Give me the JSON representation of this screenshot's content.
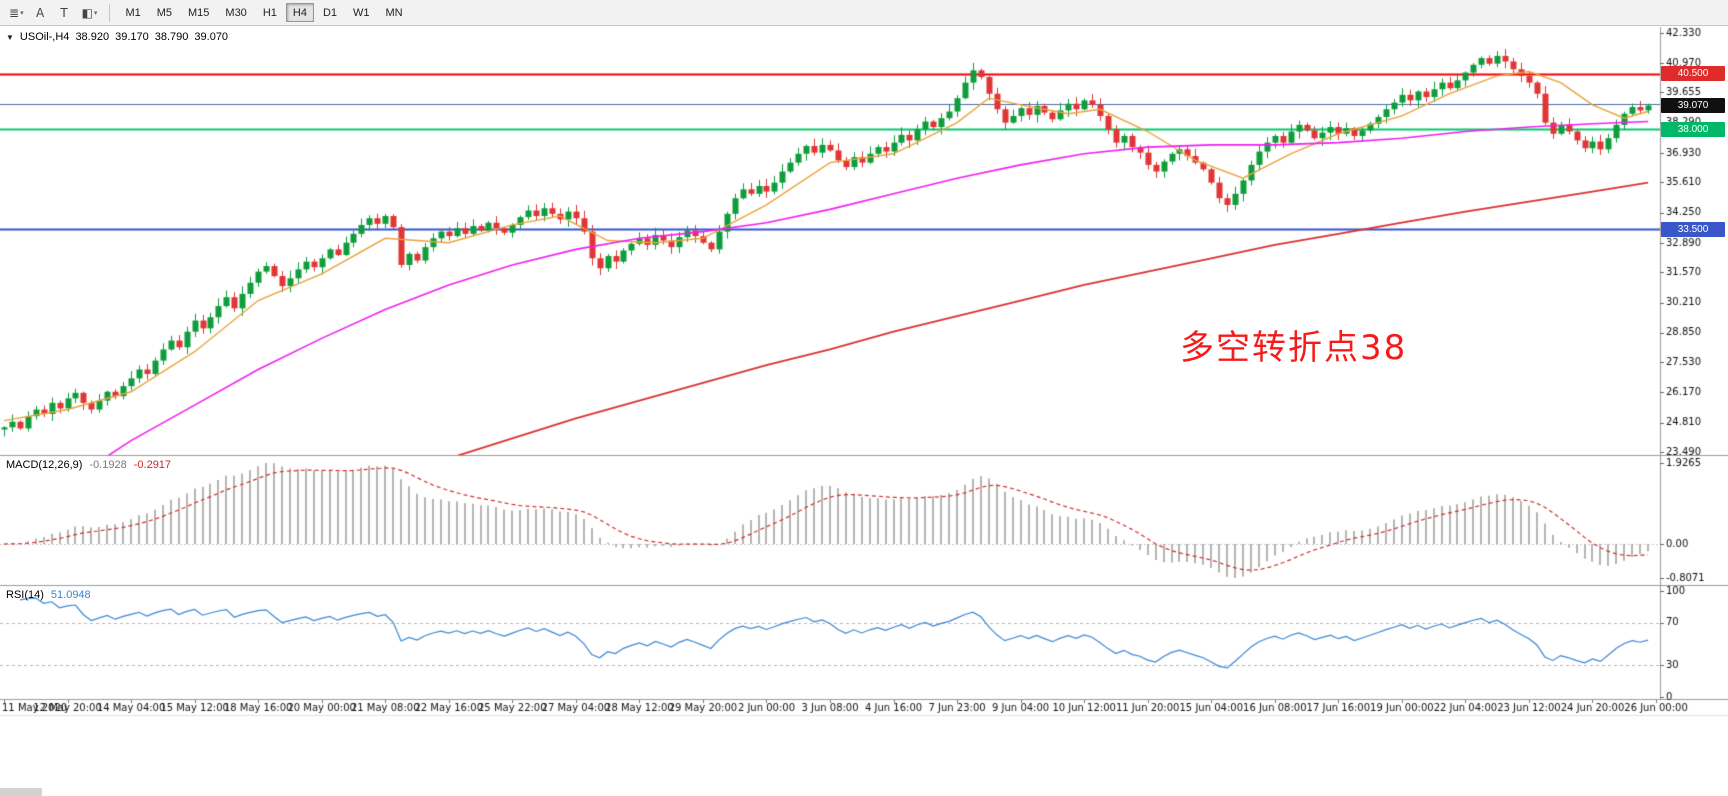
{
  "toolbar": {
    "tools": [
      {
        "glyph": "≣",
        "caret": "▾"
      },
      {
        "glyph": "A",
        "caret": ""
      },
      {
        "glyph": "T",
        "caret": ""
      },
      {
        "glyph": "◧",
        "caret": "▾"
      }
    ],
    "timeframes": [
      {
        "label": "M1",
        "active": false
      },
      {
        "label": "M5",
        "active": false
      },
      {
        "label": "M15",
        "active": false
      },
      {
        "label": "M30",
        "active": false
      },
      {
        "label": "H1",
        "active": false
      },
      {
        "label": "H4",
        "active": true
      },
      {
        "label": "D1",
        "active": false
      },
      {
        "label": "W1",
        "active": false
      },
      {
        "label": "MN",
        "active": false
      }
    ]
  },
  "chart": {
    "dropdown_icon": "▼",
    "symbol": "USOil-,H4",
    "open": "38.920",
    "high": "39.170",
    "low": "38.790",
    "close": "39.070",
    "macd_name": "MACD(12,26,9)",
    "macd_main": "-0.1928",
    "macd_signal": "-0.2917",
    "rsi_name": "RSI(14)",
    "rsi_value": "51.0948",
    "annotation": "多空转折点38"
  },
  "chart_data": {
    "type": "candlestick",
    "symbol": "USOil-",
    "timeframe": "H4",
    "price_axis": {
      "min": 23.49,
      "max": 42.33,
      "labels": [
        "42.330",
        "40.970",
        "39.655",
        "38.290",
        "36.930",
        "35.610",
        "34.250",
        "32.890",
        "31.570",
        "30.210",
        "28.850",
        "27.530",
        "26.170",
        "24.810",
        "23.490"
      ]
    },
    "first_open": 24.5,
    "closes": [
      24.6,
      24.85,
      24.55,
      25.1,
      25.4,
      25.2,
      25.7,
      25.45,
      25.9,
      26.15,
      25.7,
      25.4,
      25.8,
      26.2,
      26.0,
      26.45,
      26.8,
      27.2,
      27.0,
      27.6,
      28.1,
      28.5,
      28.2,
      28.9,
      29.4,
      29.05,
      29.55,
      30.05,
      30.45,
      29.95,
      30.6,
      31.1,
      31.6,
      31.85,
      31.4,
      30.95,
      31.3,
      31.7,
      32.05,
      31.8,
      32.2,
      32.6,
      32.35,
      32.9,
      33.3,
      33.7,
      34.0,
      33.75,
      34.1,
      33.6,
      31.9,
      32.4,
      32.1,
      32.7,
      33.1,
      33.4,
      33.2,
      33.55,
      33.3,
      33.65,
      33.45,
      33.8,
      33.55,
      33.35,
      33.7,
      34.05,
      34.35,
      34.1,
      34.45,
      34.2,
      33.95,
      34.3,
      34.0,
      33.4,
      32.2,
      31.75,
      32.3,
      32.05,
      32.55,
      32.85,
      33.1,
      32.8,
      33.25,
      33.0,
      32.7,
      33.15,
      33.45,
      33.2,
      32.9,
      32.6,
      33.4,
      34.2,
      34.9,
      35.3,
      35.1,
      35.45,
      35.2,
      35.6,
      36.1,
      36.5,
      36.9,
      37.25,
      36.95,
      37.3,
      37.05,
      36.6,
      36.3,
      36.75,
      36.5,
      36.9,
      37.2,
      37.0,
      37.4,
      37.75,
      37.5,
      38.0,
      38.35,
      38.1,
      38.5,
      38.8,
      39.4,
      40.1,
      40.65,
      40.35,
      39.6,
      38.9,
      38.3,
      38.6,
      38.95,
      38.65,
      39.05,
      38.75,
      38.45,
      38.85,
      39.15,
      38.9,
      39.3,
      39.1,
      38.6,
      38.0,
      37.4,
      37.7,
      37.2,
      36.95,
      36.4,
      36.1,
      36.55,
      36.9,
      37.1,
      36.8,
      36.5,
      36.2,
      35.6,
      34.9,
      34.6,
      35.1,
      35.7,
      36.4,
      37.0,
      37.4,
      37.7,
      37.4,
      37.9,
      38.2,
      37.95,
      37.6,
      37.85,
      38.1,
      37.8,
      38.05,
      37.7,
      37.95,
      38.25,
      38.55,
      38.9,
      39.2,
      39.55,
      39.3,
      39.7,
      39.45,
      39.8,
      40.1,
      39.85,
      40.2,
      40.55,
      40.9,
      41.2,
      40.95,
      41.3,
      41.05,
      40.7,
      40.4,
      40.1,
      39.6,
      38.3,
      37.8,
      38.2,
      37.9,
      37.5,
      37.15,
      37.45,
      37.1,
      37.6,
      38.2,
      38.7,
      39.0,
      38.85,
      39.07
    ],
    "candle_colors": {
      "up": "#0f9d3c",
      "down": "#e23535"
    },
    "hlines": [
      {
        "price": 40.5,
        "color": "#f20000",
        "width": 2
      },
      {
        "price": 39.15,
        "color": "#4a6fa5",
        "width": 1
      },
      {
        "price": 38.0,
        "color": "#00c96d",
        "width": 2
      },
      {
        "price": 33.5,
        "color": "#3354cf",
        "width": 2
      }
    ],
    "badges": [
      {
        "text": "40.500",
        "price": 40.5,
        "bg": "#e02b2b"
      },
      {
        "text": "39.070",
        "price": 39.07,
        "bg": "#101010"
      },
      {
        "text": "38.000",
        "price": 38.0,
        "bg": "#00b868"
      },
      {
        "text": "33.500",
        "price": 33.5,
        "bg": "#3a57c9"
      }
    ],
    "ma_lines": [
      {
        "name": "ma-fast-orange",
        "color": "#e8a33d",
        "width": 1.4,
        "points": [
          [
            0,
            24.9
          ],
          [
            8,
            25.4
          ],
          [
            16,
            26.2
          ],
          [
            24,
            28.0
          ],
          [
            32,
            30.3
          ],
          [
            40,
            31.5
          ],
          [
            48,
            33.1
          ],
          [
            52,
            33.0
          ],
          [
            56,
            32.9
          ],
          [
            64,
            33.7
          ],
          [
            70,
            34.1
          ],
          [
            76,
            33.0
          ],
          [
            82,
            32.9
          ],
          [
            88,
            33.1
          ],
          [
            96,
            34.6
          ],
          [
            104,
            36.5
          ],
          [
            112,
            36.9
          ],
          [
            120,
            38.3
          ],
          [
            124,
            39.4
          ],
          [
            128,
            39.1
          ],
          [
            134,
            38.7
          ],
          [
            138,
            38.9
          ],
          [
            144,
            37.9
          ],
          [
            150,
            36.6
          ],
          [
            156,
            35.8
          ],
          [
            162,
            36.9
          ],
          [
            168,
            37.8
          ],
          [
            176,
            38.6
          ],
          [
            182,
            39.6
          ],
          [
            188,
            40.4
          ],
          [
            192,
            40.6
          ],
          [
            196,
            40.1
          ],
          [
            200,
            39.1
          ],
          [
            204,
            38.5
          ],
          [
            207,
            38.8
          ]
        ]
      },
      {
        "name": "ma-mid-magenta",
        "color": "#f020f0",
        "width": 1.6,
        "points": [
          [
            10,
            22.6
          ],
          [
            16,
            24.0
          ],
          [
            24,
            25.6
          ],
          [
            32,
            27.2
          ],
          [
            40,
            28.6
          ],
          [
            48,
            29.9
          ],
          [
            56,
            31.0
          ],
          [
            64,
            31.9
          ],
          [
            72,
            32.6
          ],
          [
            80,
            33.1
          ],
          [
            88,
            33.4
          ],
          [
            96,
            33.8
          ],
          [
            104,
            34.4
          ],
          [
            112,
            35.1
          ],
          [
            120,
            35.8
          ],
          [
            128,
            36.4
          ],
          [
            136,
            36.9
          ],
          [
            144,
            37.2
          ],
          [
            152,
            37.3
          ],
          [
            160,
            37.3
          ],
          [
            168,
            37.4
          ],
          [
            176,
            37.6
          ],
          [
            184,
            37.9
          ],
          [
            192,
            38.1
          ],
          [
            200,
            38.25
          ],
          [
            207,
            38.35
          ]
        ]
      },
      {
        "name": "ma-slow-red",
        "color": "#d93030",
        "width": 1.8,
        "points": [
          [
            56,
            23.2
          ],
          [
            64,
            24.1
          ],
          [
            72,
            25.0
          ],
          [
            80,
            25.8
          ],
          [
            88,
            26.6
          ],
          [
            96,
            27.4
          ],
          [
            104,
            28.1
          ],
          [
            112,
            28.9
          ],
          [
            120,
            29.6
          ],
          [
            128,
            30.3
          ],
          [
            136,
            31.0
          ],
          [
            144,
            31.6
          ],
          [
            152,
            32.2
          ],
          [
            160,
            32.8
          ],
          [
            168,
            33.3
          ],
          [
            176,
            33.8
          ],
          [
            184,
            34.3
          ],
          [
            192,
            34.75
          ],
          [
            200,
            35.2
          ],
          [
            207,
            35.6
          ]
        ]
      }
    ],
    "macd": {
      "fast": 12,
      "slow": 26,
      "signal": 9,
      "hist_color": "#b4b4b4",
      "signal_color": "#d22f2f",
      "axis": [
        {
          "label": "1.9265",
          "value": 1.9265
        },
        {
          "label": "0.00",
          "value": 0
        },
        {
          "label": "-0.8071",
          "value": -0.8071
        }
      ]
    },
    "rsi": {
      "period": 14,
      "color": "#3a87d4",
      "axis": [
        {
          "label": "100",
          "value": 100
        },
        {
          "label": "70",
          "value": 70
        },
        {
          "label": "30",
          "value": 30
        },
        {
          "label": "0",
          "value": 0
        }
      ],
      "levels": [
        70,
        30
      ]
    },
    "time_labels": [
      "11 May 2020",
      "12 May 20:00",
      "14 May 04:00",
      "15 May 12:00",
      "18 May 16:00",
      "20 May 00:00",
      "21 May 08:00",
      "22 May 16:00",
      "25 May 22:00",
      "27 May 04:00",
      "28 May 12:00",
      "29 May 20:00",
      "2 Jun 00:00",
      "3 Jun 08:00",
      "4 Jun 16:00",
      "7 Jun 23:00",
      "9 Jun 04:00",
      "10 Jun 12:00",
      "11 Jun 20:00",
      "15 Jun 04:00",
      "16 Jun 08:00",
      "17 Jun 16:00",
      "19 Jun 00:00",
      "22 Jun 04:00",
      "23 Jun 12:00",
      "24 Jun 20:00",
      "26 Jun 00:00"
    ],
    "candles_per_label": 8
  }
}
